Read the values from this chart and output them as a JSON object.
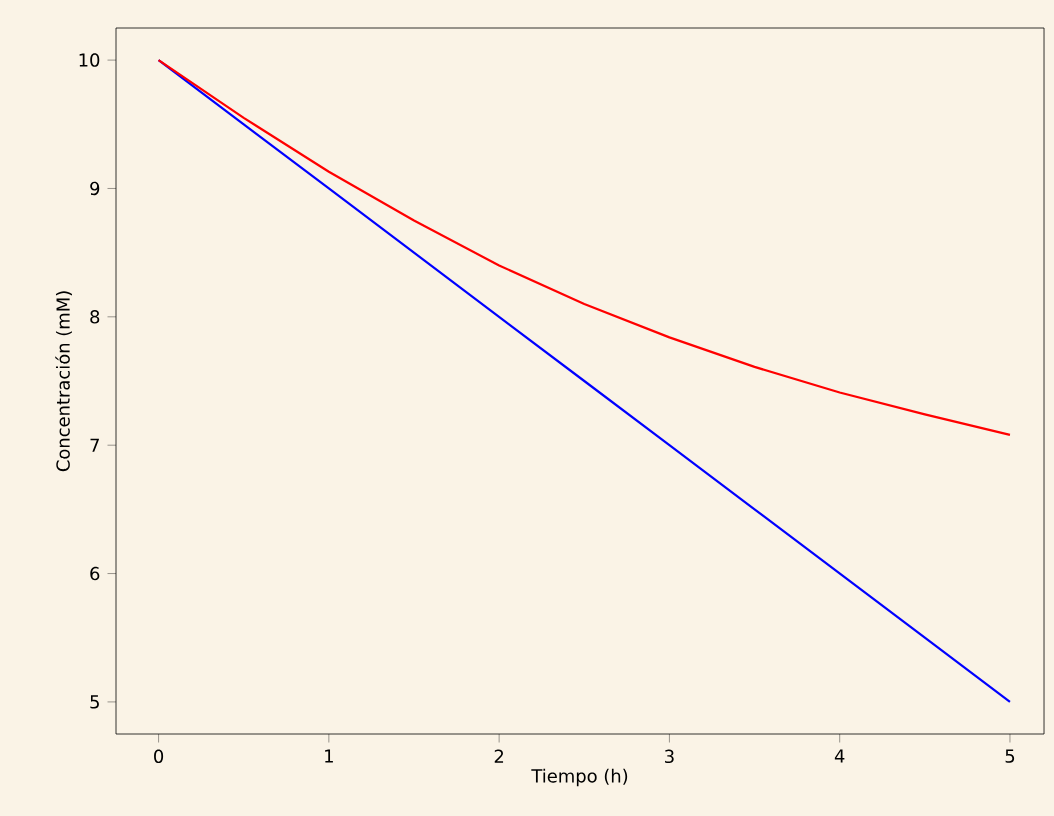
{
  "chart_data": {
    "type": "line",
    "xlabel": "Tiempo (h)",
    "ylabel": "Concentración (mM)",
    "x": [
      0,
      0.5,
      1,
      1.5,
      2,
      2.5,
      3,
      3.5,
      4,
      4.5,
      5
    ],
    "series": [
      {
        "color": "#0000ff",
        "values": [
          10,
          9.5,
          9,
          8.5,
          8,
          7.5,
          7,
          6.5,
          6,
          5.5,
          5
        ]
      },
      {
        "color": "#ff0000",
        "values": [
          10,
          9.55,
          9.13,
          8.75,
          8.4,
          8.1,
          7.84,
          7.61,
          7.41,
          7.24,
          7.08
        ]
      }
    ],
    "xlim": [
      -0.25,
      5.2
    ],
    "ylim": [
      4.75,
      10.25
    ],
    "xticks": [
      0,
      1,
      2,
      3,
      4,
      5
    ],
    "yticks": [
      5,
      6,
      7,
      8,
      9,
      10
    ],
    "marker": "none",
    "line_style": "solid"
  }
}
